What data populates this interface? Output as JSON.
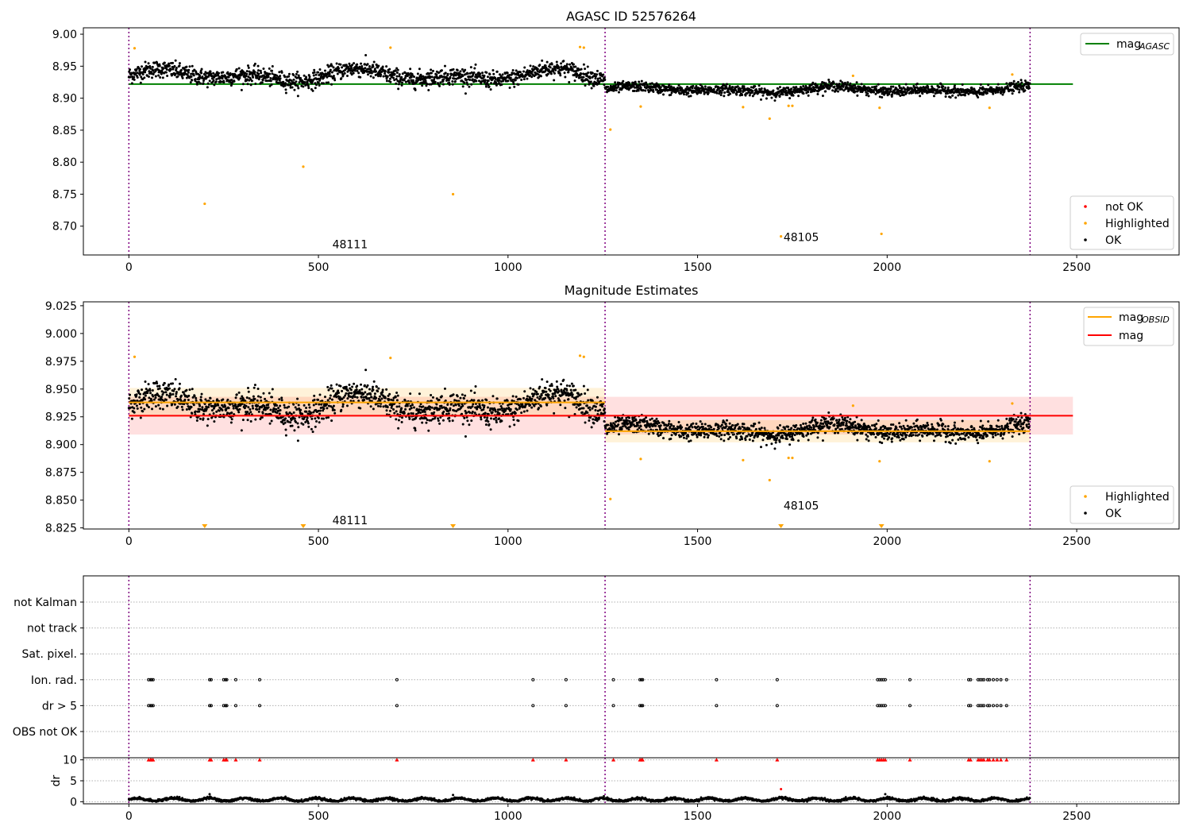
{
  "chart_data": [
    {
      "type": "scatter",
      "title": "AGASC ID 52576264",
      "xlim": [
        -120,
        2770
      ],
      "ylim": [
        8.655,
        9.01
      ],
      "xticks": [
        0,
        500,
        1000,
        1500,
        2000,
        2500
      ],
      "yticks": [
        8.7,
        8.75,
        8.8,
        8.85,
        8.9,
        8.95,
        9.0
      ],
      "obs_boundaries": [
        0,
        1256,
        2377
      ],
      "obs_labels": [
        {
          "text": "48111",
          "x": 630,
          "y": 8.672
        },
        {
          "text": "48105",
          "x": 1820,
          "y": 8.683
        }
      ],
      "lines": [
        {
          "name": "mag_AGASC",
          "color": "#008000",
          "y": 8.922,
          "x0": 0,
          "x1": 2490
        }
      ],
      "segments": [
        {
          "x0": 0,
          "x1": 1256,
          "base": 8.935,
          "spread": 0.012,
          "wave": 0.012
        },
        {
          "x0": 1256,
          "x1": 2377,
          "base": 8.913,
          "spread": 0.007,
          "wave": 0.006
        }
      ],
      "highlighted": [
        [
          15,
          8.978
        ],
        [
          200,
          8.735
        ],
        [
          460,
          8.793
        ],
        [
          690,
          8.979
        ],
        [
          855,
          8.75
        ],
        [
          1190,
          8.98
        ],
        [
          1200,
          8.979
        ],
        [
          1270,
          8.851
        ],
        [
          1350,
          8.887
        ],
        [
          1620,
          8.886
        ],
        [
          1690,
          8.868
        ],
        [
          1720,
          8.684
        ],
        [
          1740,
          8.888
        ],
        [
          1750,
          8.888
        ],
        [
          1910,
          8.935
        ],
        [
          1980,
          8.885
        ],
        [
          1985,
          8.688
        ],
        [
          2270,
          8.885
        ],
        [
          2330,
          8.937
        ]
      ],
      "legend_top": [
        {
          "label": "mag",
          "sub": "AGASC",
          "color": "#008000"
        }
      ],
      "legend_bottom": [
        {
          "label": "not OK",
          "color": "#ff0000"
        },
        {
          "label": "Highlighted",
          "color": "#ffa500"
        },
        {
          "label": "OK",
          "color": "#000000"
        }
      ]
    },
    {
      "type": "scatter",
      "title": "Magnitude Estimates",
      "xlim": [
        -120,
        2770
      ],
      "ylim": [
        8.824,
        9.0285
      ],
      "xticks": [
        0,
        500,
        1000,
        1500,
        2000,
        2500
      ],
      "yticks": [
        8.825,
        8.85,
        8.875,
        8.9,
        8.925,
        8.95,
        8.975,
        9.0,
        9.025
      ],
      "obs_boundaries": [
        0,
        1256,
        2377
      ],
      "obs_labels": [
        {
          "text": "48111",
          "x": 630,
          "y": 8.832
        },
        {
          "text": "48105",
          "x": 1820,
          "y": 8.845
        }
      ],
      "lines": [
        {
          "name": "mag_OBSID_1",
          "color": "#ffa500",
          "y": 8.938,
          "x0": 0,
          "x1": 1256
        },
        {
          "name": "mag_OBSID_2",
          "color": "#ffa500",
          "y": 8.912,
          "x0": 1256,
          "x1": 2377
        },
        {
          "name": "mag",
          "color": "#ff0000",
          "y": 8.926,
          "x0": 0,
          "x1": 2490
        }
      ],
      "bands": [
        {
          "color": "#ff0000",
          "opacity": 0.12,
          "y0": 8.909,
          "y1": 8.943,
          "x0": 0,
          "x1": 2490
        },
        {
          "color": "#ffa500",
          "opacity": 0.15,
          "y0": 8.925,
          "y1": 8.951,
          "x0": 0,
          "x1": 1256
        },
        {
          "color": "#ffa500",
          "opacity": 0.15,
          "y0": 8.902,
          "y1": 8.922,
          "x0": 1256,
          "x1": 2377
        }
      ],
      "segments": [
        {
          "x0": 0,
          "x1": 1256,
          "base": 8.935,
          "spread": 0.012,
          "wave": 0.012
        },
        {
          "x0": 1256,
          "x1": 2377,
          "base": 8.913,
          "spread": 0.007,
          "wave": 0.006
        }
      ],
      "highlighted": [
        [
          15,
          8.979
        ],
        [
          690,
          8.978
        ],
        [
          1190,
          8.98
        ],
        [
          1200,
          8.979
        ],
        [
          1270,
          8.851
        ],
        [
          1350,
          8.887
        ],
        [
          1620,
          8.886
        ],
        [
          1690,
          8.868
        ],
        [
          1740,
          8.888
        ],
        [
          1750,
          8.888
        ],
        [
          1910,
          8.935
        ],
        [
          1980,
          8.885
        ],
        [
          2270,
          8.885
        ],
        [
          2330,
          8.937
        ]
      ],
      "offscale_markers": [
        200,
        460,
        855,
        1720,
        1985
      ],
      "legend_top": [
        {
          "label": "mag",
          "sub": "OBSID",
          "color": "#ffa500"
        },
        {
          "label": "mag",
          "sub": "",
          "color": "#ff0000"
        }
      ],
      "legend_bottom": [
        {
          "label": "Highlighted",
          "color": "#ffa500"
        },
        {
          "label": "OK",
          "color": "#000000"
        }
      ]
    },
    {
      "type": "scatter",
      "xlim": [
        -120,
        2770
      ],
      "categories": [
        "not Kalman",
        "not track",
        "Sat. pixel.",
        "Ion. rad.",
        "dr > 5",
        "OBS not OK"
      ],
      "flag_points": {
        "Ion. rad.": [
          52,
          57,
          60,
          64,
          213,
          217,
          250,
          255,
          258,
          282,
          345,
          707,
          1066,
          1153,
          1278,
          1348,
          1352,
          1355,
          1550,
          1710,
          1975,
          1980,
          1985,
          1990,
          1995,
          2060,
          2215,
          2220,
          2240,
          2245,
          2250,
          2255,
          2265,
          2270,
          2280,
          2290,
          2300,
          2315
        ],
        "dr > 5": [
          52,
          57,
          60,
          64,
          213,
          217,
          250,
          255,
          258,
          282,
          345,
          707,
          1066,
          1153,
          1278,
          1348,
          1352,
          1355,
          1550,
          1710,
          1975,
          1980,
          1985,
          1990,
          1995,
          2060,
          2215,
          2220,
          2240,
          2245,
          2250,
          2255,
          2265,
          2270,
          2280,
          2290,
          2300,
          2315
        ]
      },
      "obs_boundaries": [
        0,
        1256,
        2377
      ]
    },
    {
      "type": "scatter",
      "xlim": [
        -120,
        2770
      ],
      "ylim": [
        -0.5,
        10.5
      ],
      "ylabel": "dr",
      "xticks": [
        0,
        500,
        1000,
        1500,
        2000,
        2500
      ],
      "yticks": [
        0,
        5,
        10
      ],
      "capped_value": 10,
      "capped_x": [
        52,
        57,
        60,
        64,
        213,
        217,
        250,
        255,
        258,
        282,
        345,
        707,
        1066,
        1153,
        1278,
        1348,
        1352,
        1355,
        1550,
        1710,
        1975,
        1980,
        1985,
        1990,
        1995,
        2060,
        2215,
        2220,
        2240,
        2245,
        2250,
        2255,
        2265,
        2270,
        2280,
        2290,
        2300,
        2315
      ],
      "notable": [
        [
          855,
          1.6
        ],
        [
          1720,
          3.0
        ],
        [
          213,
          1.8
        ],
        [
          1995,
          1.8
        ]
      ],
      "obs_boundaries": [
        0,
        1256,
        2377
      ]
    }
  ]
}
